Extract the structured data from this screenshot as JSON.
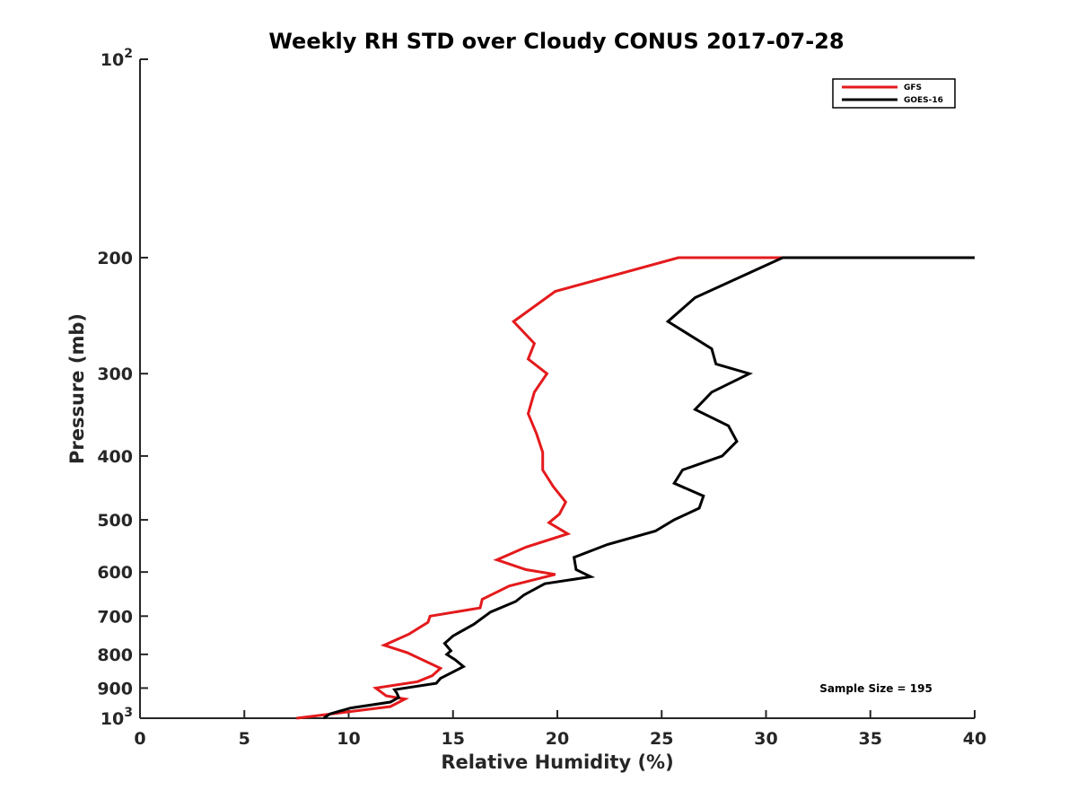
{
  "chart_data": {
    "type": "line",
    "title": "Weekly RH STD over Cloudy CONUS 2017-07-28",
    "xlabel": "Relative Humidity (%)",
    "ylabel": "Pressure (mb)",
    "xlim": [
      0,
      40
    ],
    "ylim": [
      100,
      1000
    ],
    "y_scale": "log",
    "y_reversed": true,
    "grid": false,
    "legend_position": "top-right",
    "x_ticks": [
      "0",
      "5",
      "10",
      "15",
      "20",
      "25",
      "30",
      "35",
      "40"
    ],
    "y_ticks": [
      {
        "value": 100,
        "base": "10",
        "exp": "2",
        "label": ""
      },
      {
        "value": 200,
        "base": "",
        "exp": "",
        "label": "200"
      },
      {
        "value": 300,
        "base": "",
        "exp": "",
        "label": "300"
      },
      {
        "value": 400,
        "base": "",
        "exp": "",
        "label": "400"
      },
      {
        "value": 500,
        "base": "",
        "exp": "",
        "label": "500"
      },
      {
        "value": 600,
        "base": "",
        "exp": "",
        "label": "600"
      },
      {
        "value": 700,
        "base": "",
        "exp": "",
        "label": "700"
      },
      {
        "value": 800,
        "base": "",
        "exp": "",
        "label": "800"
      },
      {
        "value": 900,
        "base": "",
        "exp": "",
        "label": "900"
      },
      {
        "value": 1000,
        "base": "10",
        "exp": "3",
        "label": ""
      }
    ],
    "series": [
      {
        "name": "GFS",
        "color": "#e41a1c",
        "points": [
          [
            40,
            200
          ],
          [
            25.8,
            200
          ],
          [
            19.9,
            225
          ],
          [
            17.9,
            250
          ],
          [
            18.9,
            270
          ],
          [
            18.6,
            285
          ],
          [
            19.5,
            300
          ],
          [
            18.9,
            320
          ],
          [
            18.6,
            345
          ],
          [
            19.0,
            370
          ],
          [
            19.3,
            395
          ],
          [
            19.3,
            420
          ],
          [
            19.8,
            445
          ],
          [
            20.4,
            470
          ],
          [
            20.1,
            490
          ],
          [
            19.6,
            505
          ],
          [
            20.5,
            525
          ],
          [
            18.5,
            550
          ],
          [
            17.1,
            575
          ],
          [
            18.5,
            595
          ],
          [
            19.9,
            605
          ],
          [
            17.7,
            630
          ],
          [
            16.4,
            660
          ],
          [
            16.3,
            680
          ],
          [
            13.9,
            700
          ],
          [
            13.8,
            715
          ],
          [
            12.9,
            745
          ],
          [
            11.7,
            775
          ],
          [
            12.8,
            795
          ],
          [
            14.4,
            840
          ],
          [
            14.0,
            862
          ],
          [
            13.3,
            880
          ],
          [
            11.3,
            900
          ],
          [
            11.8,
            925
          ],
          [
            12.7,
            935
          ],
          [
            12.0,
            960
          ],
          [
            7.5,
            1000
          ]
        ]
      },
      {
        "name": "GOES-16",
        "color": "#000000",
        "points": [
          [
            40,
            200
          ],
          [
            30.8,
            200
          ],
          [
            26.6,
            230
          ],
          [
            25.3,
            250
          ],
          [
            27.4,
            275
          ],
          [
            27.6,
            290
          ],
          [
            29.2,
            300
          ],
          [
            27.4,
            320
          ],
          [
            26.6,
            340
          ],
          [
            28.2,
            360
          ],
          [
            28.6,
            380
          ],
          [
            27.9,
            400
          ],
          [
            26.0,
            420
          ],
          [
            25.6,
            440
          ],
          [
            27.0,
            460
          ],
          [
            26.8,
            480
          ],
          [
            25.6,
            500
          ],
          [
            24.7,
            520
          ],
          [
            22.4,
            545
          ],
          [
            20.8,
            570
          ],
          [
            20.9,
            595
          ],
          [
            21.6,
            610
          ],
          [
            19.4,
            625
          ],
          [
            18.4,
            650
          ],
          [
            18.0,
            665
          ],
          [
            16.8,
            690
          ],
          [
            16.0,
            720
          ],
          [
            15.0,
            750
          ],
          [
            14.6,
            770
          ],
          [
            14.9,
            790
          ],
          [
            14.7,
            800
          ],
          [
            15.1,
            815
          ],
          [
            15.5,
            835
          ],
          [
            14.4,
            870
          ],
          [
            14.2,
            885
          ],
          [
            12.2,
            905
          ],
          [
            12.3,
            915
          ],
          [
            12.4,
            930
          ],
          [
            12.0,
            945
          ],
          [
            10.1,
            965
          ],
          [
            9.1,
            985
          ],
          [
            8.8,
            1000
          ]
        ]
      }
    ],
    "annotation": "Sample Size = 195"
  }
}
